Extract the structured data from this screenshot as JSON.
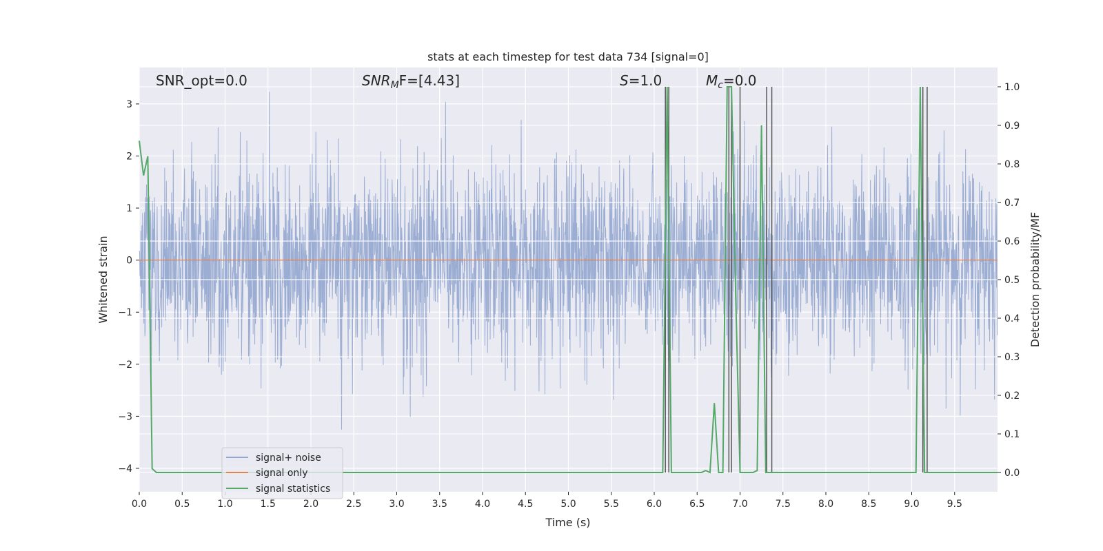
{
  "chart_data": {
    "type": "line",
    "title": "stats at each timestep for test data 734 [signal=0]",
    "xlabel": "Time (s)",
    "ylabel": "Whitened strain",
    "ylabel_right": "Detection probability/MF",
    "xlim": [
      0.0,
      10.0
    ],
    "ylim": [
      -4.45,
      3.7
    ],
    "ylim_right": [
      -0.05,
      1.05
    ],
    "xticks": [
      0.0,
      0.5,
      1.0,
      1.5,
      2.0,
      2.5,
      3.0,
      3.5,
      4.0,
      4.5,
      5.0,
      5.5,
      6.0,
      6.5,
      7.0,
      7.5,
      8.0,
      8.5,
      9.0,
      9.5
    ],
    "xtick_labels": [
      "0.0",
      "0.5",
      "1.0",
      "1.5",
      "2.0",
      "2.5",
      "3.0",
      "3.5",
      "4.0",
      "4.5",
      "5.0",
      "5.5",
      "6.0",
      "6.5",
      "7.0",
      "7.5",
      "8.0",
      "8.5",
      "9.0",
      "9.5"
    ],
    "yticks_left": [
      3,
      2,
      1,
      0,
      -1,
      -2,
      -3,
      -4
    ],
    "ytick_labels_left": [
      "3",
      "2",
      "1",
      "0",
      "−1",
      "−2",
      "−3",
      "−4"
    ],
    "yticks_right": [
      1.0,
      0.9,
      0.8,
      0.7,
      0.6,
      0.5,
      0.4,
      0.3,
      0.2,
      0.1,
      0.0
    ],
    "ytick_labels_right": [
      "1.0",
      "0.9",
      "0.8",
      "0.7",
      "0.6",
      "0.5",
      "0.4",
      "0.3",
      "0.2",
      "0.1",
      "0.0"
    ],
    "grid": true,
    "legend_position": "lower-left",
    "annotations": {
      "snr_opt": "SNR_opt=0.0",
      "snr_mf_sym": "SNR",
      "snr_mf_sub": "M",
      "snr_mf_rest": "F=[4.43]",
      "s_sym": "S",
      "s_rest": "=1.0",
      "mc_sym": "M",
      "mc_sub": "c",
      "mc_rest": "=0.0"
    },
    "series": [
      {
        "name": "signal+ noise",
        "color": "#92a6cf",
        "description_values": "whitened noise, dense; envelope roughly -3.6 to 3.45 (axis units)"
      },
      {
        "name": "signal only",
        "color": "#dd8452",
        "x": [
          0.0,
          10.0
        ],
        "y": [
          0.0,
          0.0
        ]
      },
      {
        "name": "signal statistics",
        "color": "#55a868",
        "axis": "right",
        "x": [
          0.0,
          0.05,
          0.1,
          0.15,
          0.2,
          0.25,
          0.3,
          6.1,
          6.15,
          6.2,
          6.25,
          6.55,
          6.6,
          6.65,
          6.7,
          6.75,
          6.8,
          6.85,
          6.9,
          6.95,
          7.0,
          7.05,
          7.1,
          7.15,
          7.2,
          7.25,
          7.3,
          7.35,
          7.4,
          7.45,
          7.5,
          9.05,
          9.1,
          9.15,
          9.2,
          9.25,
          9.5,
          10.0
        ],
        "y": [
          0.86,
          0.77,
          0.82,
          0.01,
          0.0,
          0.0,
          0.0,
          0.0,
          1.0,
          0.0,
          0.0,
          0.0,
          0.005,
          0.0,
          0.18,
          0.0,
          0.0,
          1.0,
          1.0,
          0.45,
          0.0,
          0.0,
          0.0,
          0.0,
          0.005,
          0.9,
          0.0,
          0.0,
          0.0,
          0.0,
          0.0,
          0.0,
          1.0,
          0.0,
          0.0,
          0.0,
          0.0,
          0.0
        ]
      }
    ],
    "vertical_lines": {
      "color": "#555555",
      "x": [
        6.13,
        6.17,
        6.87,
        6.9,
        7.0,
        7.31,
        7.37,
        9.13,
        9.18
      ]
    }
  }
}
